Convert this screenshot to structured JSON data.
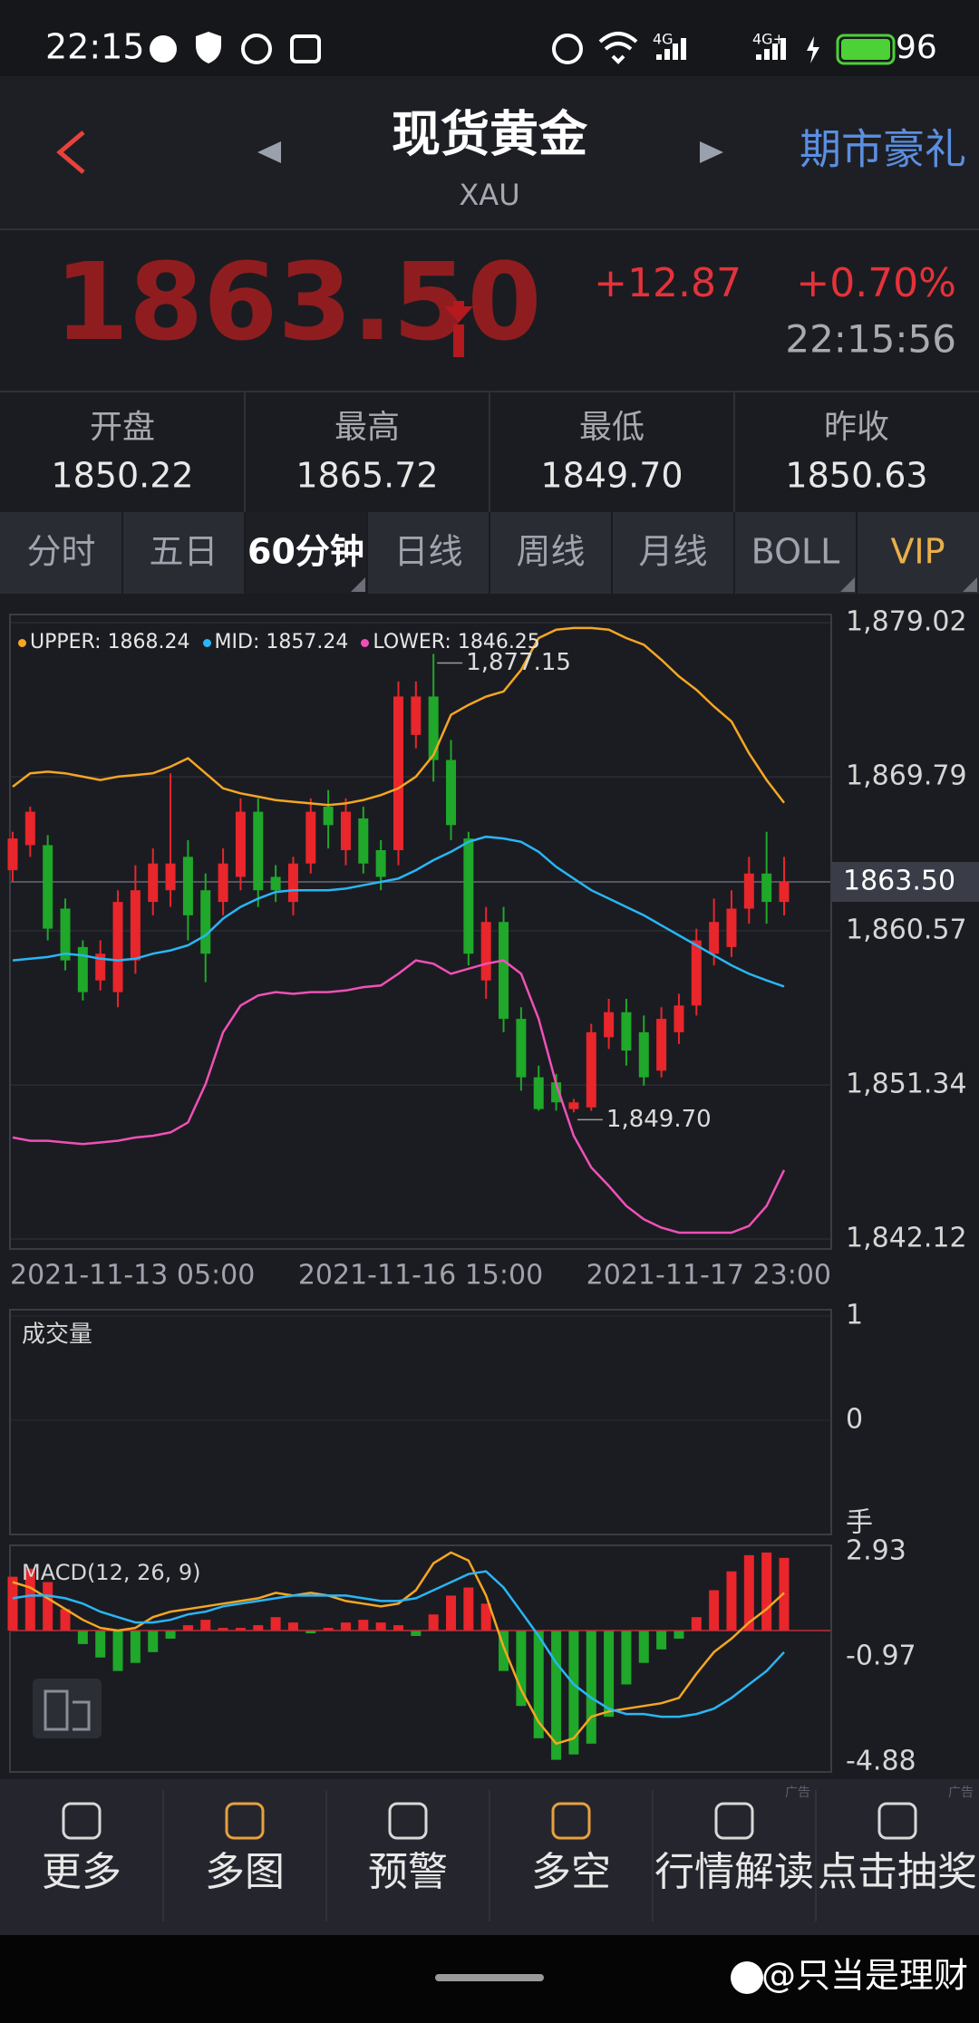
{
  "status_bar": {
    "time": "22:15",
    "network": [
      "4G",
      "4G+"
    ],
    "battery": "96"
  },
  "header": {
    "title": "现货黄金",
    "symbol": "XAU",
    "promo": "期市豪礼"
  },
  "quote": {
    "price": "1863.50",
    "change": "+12.87",
    "change_pct": "+0.70%",
    "time": "22:15:56"
  },
  "stats": [
    {
      "label": "开盘",
      "value": "1850.22"
    },
    {
      "label": "最高",
      "value": "1865.72"
    },
    {
      "label": "最低",
      "value": "1849.70"
    },
    {
      "label": "昨收",
      "value": "1850.63"
    }
  ],
  "tabs": [
    {
      "label": "分时"
    },
    {
      "label": "五日"
    },
    {
      "label": "60分钟",
      "selected": true
    },
    {
      "label": "日线"
    },
    {
      "label": "周线"
    },
    {
      "label": "月线"
    },
    {
      "label": "BOLL"
    },
    {
      "label": "VIP",
      "color": "#e8b04a"
    }
  ],
  "chart_data": [
    {
      "type": "candlestick",
      "up_color": "#e8262c",
      "down_color": "#1fa82a",
      "open": [
        1864.2,
        1865.7,
        1865.7,
        1861.9,
        1859.6,
        1857.6,
        1856.9,
        1858.8,
        1862.3,
        1863.0,
        1865.0,
        1863.0,
        1862.3,
        1863.8,
        1867.7,
        1863.8,
        1862.3,
        1864.6,
        1868.0,
        1865.4,
        1867.3,
        1865.4,
        1865.4,
        1872.3,
        1874.6,
        1870.8,
        1866.1,
        1857.6,
        1861.1,
        1855.3,
        1851.8,
        1851.5,
        1849.9,
        1850.0,
        1854.2,
        1855.7,
        1854.5,
        1852.2,
        1854.5,
        1856.1,
        1859.2,
        1859.6,
        1861.9,
        1864.0,
        1862.3
      ],
      "high": [
        1866.5,
        1868.0,
        1866.3,
        1862.5,
        1860.0,
        1860.0,
        1863.0,
        1864.5,
        1865.5,
        1870.0,
        1866.0,
        1864.0,
        1865.5,
        1868.5,
        1868.5,
        1864.5,
        1865.0,
        1868.5,
        1869.0,
        1868.5,
        1868.0,
        1866.0,
        1875.5,
        1875.5,
        1877.15,
        1872.0,
        1866.5,
        1862.0,
        1862.0,
        1856.0,
        1852.5,
        1852.0,
        1850.5,
        1855.0,
        1856.5,
        1856.5,
        1855.5,
        1856.0,
        1856.8,
        1860.7,
        1862.5,
        1863.0,
        1865.0,
        1866.5,
        1865.0
      ],
      "low": [
        1863.5,
        1865.0,
        1860.0,
        1858.2,
        1856.4,
        1857.0,
        1856.0,
        1858.0,
        1861.5,
        1862.0,
        1860.0,
        1857.5,
        1861.5,
        1863.0,
        1862.0,
        1862.3,
        1861.5,
        1864.0,
        1865.5,
        1864.5,
        1864.0,
        1863.0,
        1864.5,
        1871.5,
        1869.5,
        1866.0,
        1858.5,
        1856.5,
        1854.5,
        1851.0,
        1849.8,
        1849.8,
        1849.7,
        1849.8,
        1853.5,
        1852.5,
        1851.3,
        1851.8,
        1853.8,
        1855.5,
        1858.5,
        1859.0,
        1861.0,
        1861.0,
        1861.5
      ],
      "close": [
        1866.1,
        1867.7,
        1860.7,
        1858.8,
        1856.9,
        1859.2,
        1862.3,
        1863.0,
        1864.6,
        1864.6,
        1861.5,
        1859.2,
        1864.6,
        1867.7,
        1863.0,
        1863.0,
        1864.6,
        1867.7,
        1866.9,
        1867.7,
        1864.6,
        1863.8,
        1874.6,
        1874.6,
        1870.8,
        1866.9,
        1859.2,
        1861.1,
        1855.3,
        1851.8,
        1849.9,
        1850.3,
        1850.3,
        1854.5,
        1855.7,
        1853.4,
        1851.8,
        1855.3,
        1856.1,
        1860.0,
        1861.1,
        1861.9,
        1864.0,
        1862.3,
        1863.5
      ],
      "series": [
        {
          "name": "UPPER",
          "color": "#f5a623",
          "values": [
            1869.2,
            1870.0,
            1870.1,
            1870.0,
            1869.8,
            1869.6,
            1869.8,
            1869.9,
            1870.0,
            1870.4,
            1870.9,
            1870.0,
            1869.1,
            1868.8,
            1868.6,
            1868.4,
            1868.3,
            1868.2,
            1868.1,
            1868.2,
            1868.4,
            1868.7,
            1869.1,
            1869.8,
            1871.1,
            1873.5,
            1874.1,
            1874.6,
            1874.9,
            1876.2,
            1878.1,
            1878.6,
            1878.7,
            1878.7,
            1878.6,
            1878.1,
            1877.7,
            1876.8,
            1875.8,
            1875.0,
            1874.0,
            1873.1,
            1871.2,
            1869.6,
            1868.24
          ]
        },
        {
          "name": "MID",
          "color": "#29b6f6",
          "values": [
            1858.8,
            1858.9,
            1859.0,
            1859.2,
            1859.1,
            1858.9,
            1858.8,
            1858.9,
            1859.2,
            1859.4,
            1859.7,
            1860.3,
            1861.3,
            1862.0,
            1862.5,
            1862.9,
            1863.0,
            1863.0,
            1863.0,
            1863.1,
            1863.3,
            1863.5,
            1863.7,
            1864.2,
            1864.8,
            1865.3,
            1865.9,
            1866.2,
            1866.1,
            1865.9,
            1865.3,
            1864.4,
            1863.7,
            1863.0,
            1862.5,
            1862.0,
            1861.5,
            1860.9,
            1860.3,
            1859.7,
            1859.1,
            1858.5,
            1858.0,
            1857.6,
            1857.24
          ]
        },
        {
          "name": "LOWER",
          "color": "#f050b8",
          "values": [
            1848.2,
            1848.0,
            1848.0,
            1847.9,
            1847.8,
            1847.9,
            1848.0,
            1848.2,
            1848.3,
            1848.5,
            1849.1,
            1851.4,
            1854.5,
            1856.1,
            1856.7,
            1856.9,
            1856.8,
            1856.9,
            1856.9,
            1857.0,
            1857.2,
            1857.3,
            1858.0,
            1858.8,
            1858.6,
            1858.0,
            1858.3,
            1858.6,
            1858.8,
            1858.0,
            1855.3,
            1851.4,
            1848.3,
            1846.4,
            1845.3,
            1844.1,
            1843.3,
            1842.8,
            1842.5,
            1842.5,
            1842.5,
            1842.5,
            1842.9,
            1844.1,
            1846.25
          ]
        }
      ],
      "ylim": [
        1842.12,
        1879.02
      ],
      "yticks": [
        {
          "value": 1879.02,
          "label": "1,879.02"
        },
        {
          "value": 1869.79,
          "label": "1,869.79"
        },
        {
          "value": 1860.57,
          "label": "1,860.57"
        },
        {
          "value": 1851.34,
          "label": "1,851.34"
        },
        {
          "value": 1842.12,
          "label": "1,842.12"
        }
      ],
      "grid": true,
      "x_labels": [
        "2021-11-13 05:00",
        "2021-11-16 15:00",
        "2021-11-17 23:00"
      ],
      "last": {
        "value": 1863.5,
        "label": "1863.50"
      },
      "annotations": [
        {
          "kind": "high",
          "value": 1877.15,
          "label": "1,877.15"
        },
        {
          "kind": "low",
          "value": 1849.7,
          "label": "1,849.70"
        }
      ]
    },
    {
      "type": "volume",
      "title": "成交量",
      "ylim": [
        0,
        1
      ],
      "yticks": [
        1,
        0
      ],
      "unit": "手"
    },
    {
      "type": "macd",
      "title": "MACD(12, 26, 9)",
      "ylim": [
        -4.88,
        2.93
      ],
      "yticks": [
        2.93,
        -0.97,
        -4.88
      ],
      "up_color": "#e8262c",
      "down_color": "#1fa82a",
      "histogram": [
        2.0,
        2.3,
        1.8,
        0.8,
        -0.5,
        -1.0,
        -1.5,
        -1.2,
        -0.8,
        -0.3,
        0.2,
        0.4,
        0.1,
        0.1,
        0.2,
        0.5,
        0.3,
        -0.1,
        0.1,
        0.3,
        0.4,
        0.3,
        0.2,
        -0.2,
        0.6,
        1.3,
        1.6,
        1.0,
        -1.5,
        -2.8,
        -4.0,
        -4.8,
        -4.6,
        -4.2,
        -3.2,
        -2.0,
        -1.2,
        -0.7,
        -0.3,
        0.5,
        1.5,
        2.2,
        2.8,
        2.9,
        2.7
      ],
      "series": [
        {
          "color": "#f5a623",
          "values": [
            1.8,
            1.6,
            1.2,
            0.8,
            0.4,
            0.1,
            0.0,
            0.1,
            0.5,
            0.7,
            0.8,
            0.9,
            1.0,
            1.1,
            1.2,
            1.4,
            1.3,
            1.4,
            1.3,
            1.1,
            1.0,
            0.9,
            1.0,
            1.5,
            2.5,
            2.9,
            2.6,
            1.3,
            -0.6,
            -2.2,
            -3.4,
            -4.2,
            -4.0,
            -3.2,
            -3.0,
            -2.9,
            -2.8,
            -2.7,
            -2.5,
            -1.6,
            -0.8,
            -0.3,
            0.3,
            0.8,
            1.4
          ]
        },
        {
          "color": "#29b6f6",
          "values": [
            1.2,
            1.3,
            1.3,
            1.2,
            1.0,
            0.7,
            0.5,
            0.3,
            0.3,
            0.4,
            0.6,
            0.7,
            0.9,
            1.0,
            1.1,
            1.2,
            1.3,
            1.3,
            1.3,
            1.3,
            1.2,
            1.1,
            1.1,
            1.2,
            1.5,
            1.8,
            2.1,
            2.2,
            1.6,
            0.7,
            -0.2,
            -1.2,
            -2.0,
            -2.5,
            -2.9,
            -3.1,
            -3.1,
            -3.2,
            -3.2,
            -3.1,
            -2.9,
            -2.5,
            -2.0,
            -1.5,
            -0.8
          ]
        }
      ]
    }
  ],
  "nav": [
    {
      "label": "更多",
      "icon_color": "#d8d8d8"
    },
    {
      "label": "多图",
      "icon_color": "#e8a040"
    },
    {
      "label": "预警",
      "icon_color": "#d8d8d8"
    },
    {
      "label": "多空",
      "icon_color": "#e8a040"
    },
    {
      "label": "行情解读",
      "icon_color": "#d8d8d8",
      "ad_tag": "广告"
    },
    {
      "label": "点击抽奖",
      "icon_color": "#d8d8d8",
      "ad_tag": "广告"
    }
  ],
  "watermark": "@只当是理财"
}
